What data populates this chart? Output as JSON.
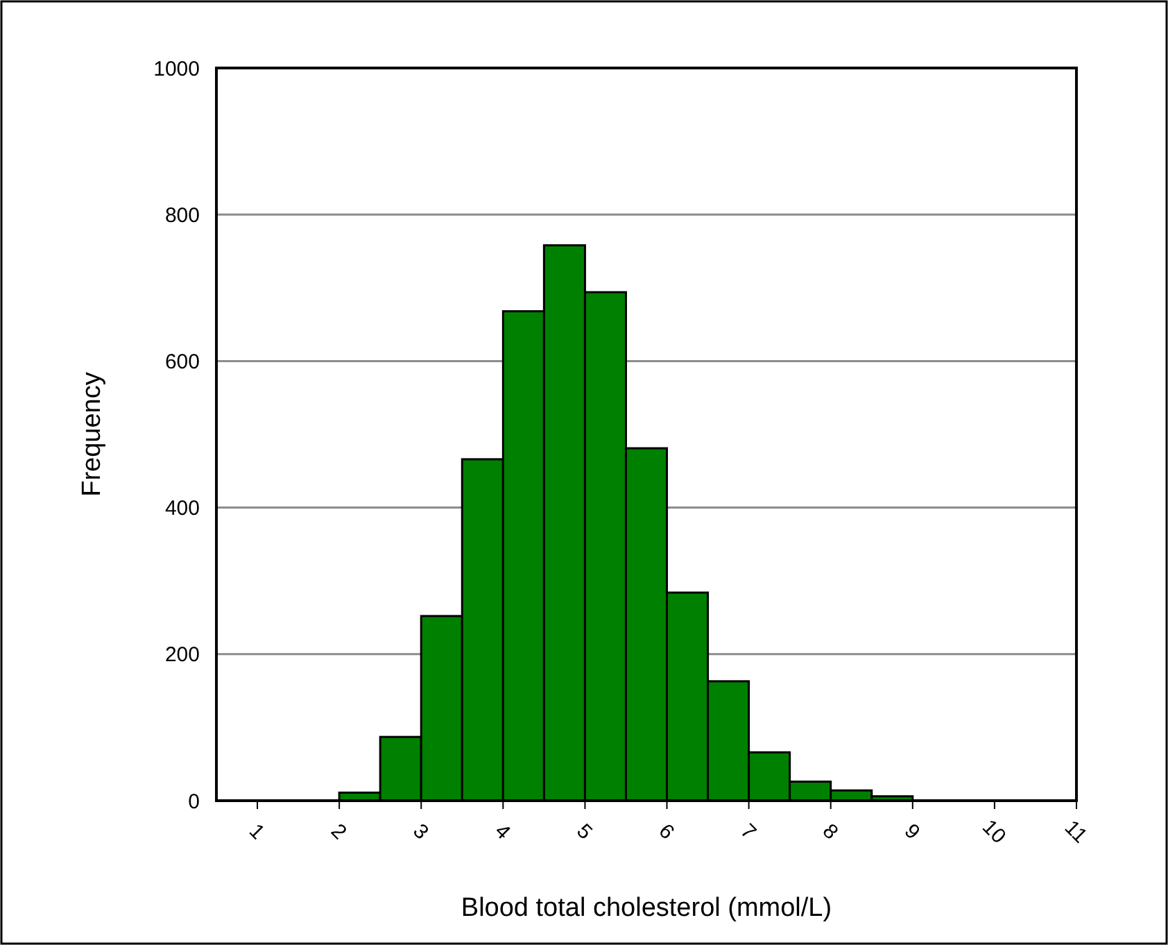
{
  "chart_data": {
    "type": "histogram",
    "xlabel": "Blood total cholesterol (mmol/L)",
    "ylabel": "Frequency",
    "bins": [
      2,
      2.5,
      3,
      3.5,
      4,
      4.5,
      5,
      5.5,
      6,
      6.5,
      7,
      7.5,
      8,
      8.5,
      9
    ],
    "values": [
      11,
      87,
      252,
      466,
      668,
      758,
      694,
      481,
      284,
      163,
      66,
      26,
      14,
      6
    ],
    "color": "#008000",
    "xlim": [
      0.5,
      11
    ],
    "xticks": [
      1,
      2,
      3,
      4,
      5,
      6,
      7,
      8,
      9,
      10,
      11
    ],
    "ylim": [
      0,
      1000
    ],
    "yticks": [
      0,
      200,
      400,
      600,
      800,
      1000
    ],
    "grid": "y"
  }
}
